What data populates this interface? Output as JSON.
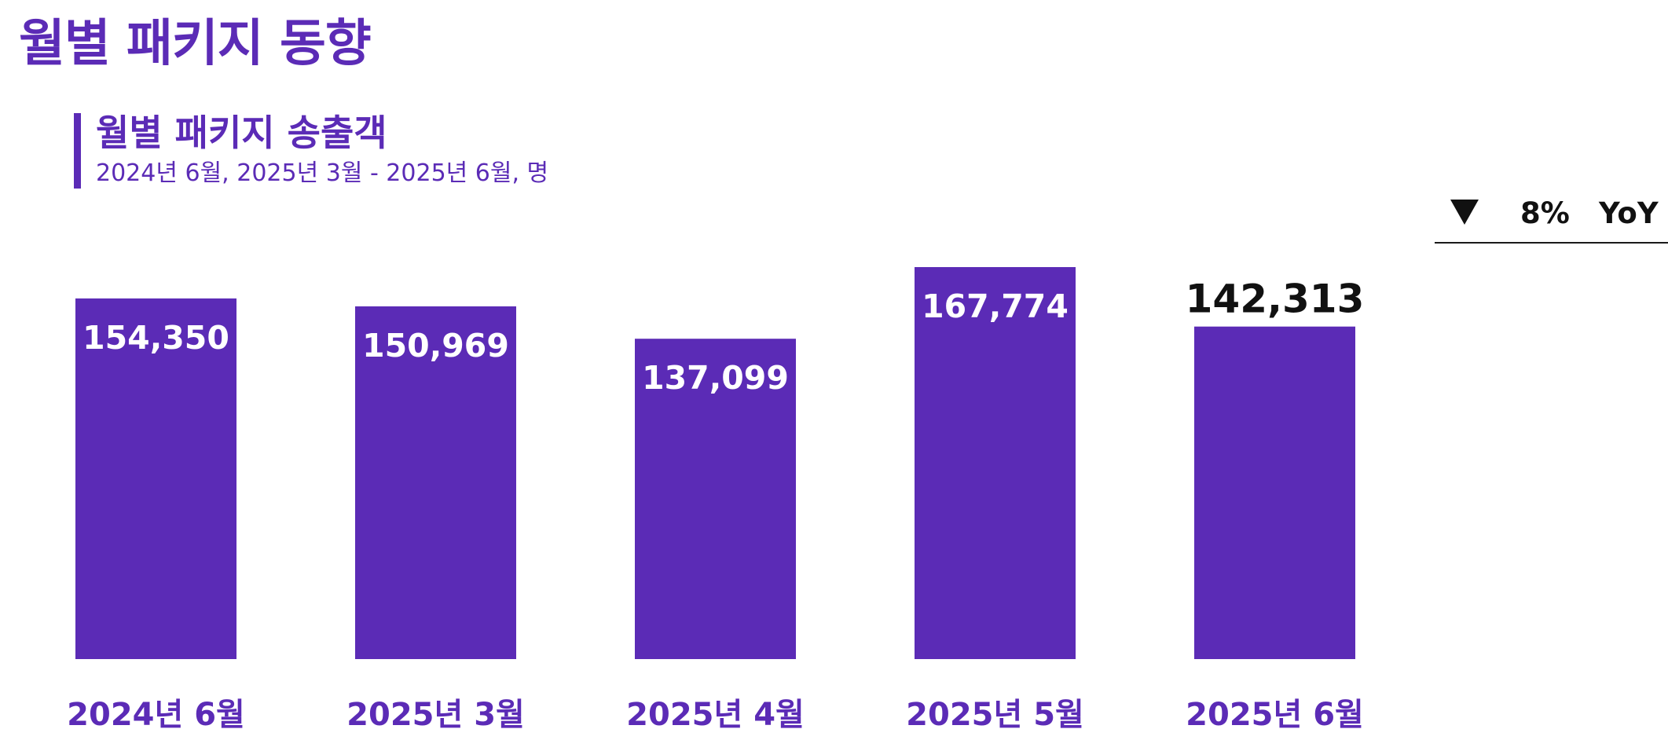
{
  "page": {
    "title": "월별 패키지 동향"
  },
  "yoy": {
    "direction_icon": "down-triangle-icon",
    "value": "8%",
    "label": "YoY"
  },
  "chart_data": {
    "type": "bar",
    "title": "월별 패키지 송출객",
    "subtitle": "2024년 6월, 2025년 3월 - 2025년 6월, 명",
    "categories": [
      "2024년 6월",
      "2025년 3월",
      "2025년 4월",
      "2025년 5월",
      "2025년 6월"
    ],
    "values": [
      154350,
      150969,
      137099,
      167774,
      142313
    ],
    "value_labels": [
      "154,350",
      "150,969",
      "137,099",
      "167,774",
      "142,313"
    ],
    "highlight_index": 4,
    "ylim": [
      0,
      167774
    ],
    "grid": false,
    "legend": "none",
    "bar_color": "#5b2bb6",
    "label_color_inside": "#ffffff",
    "label_color_highlight": "#111111"
  }
}
